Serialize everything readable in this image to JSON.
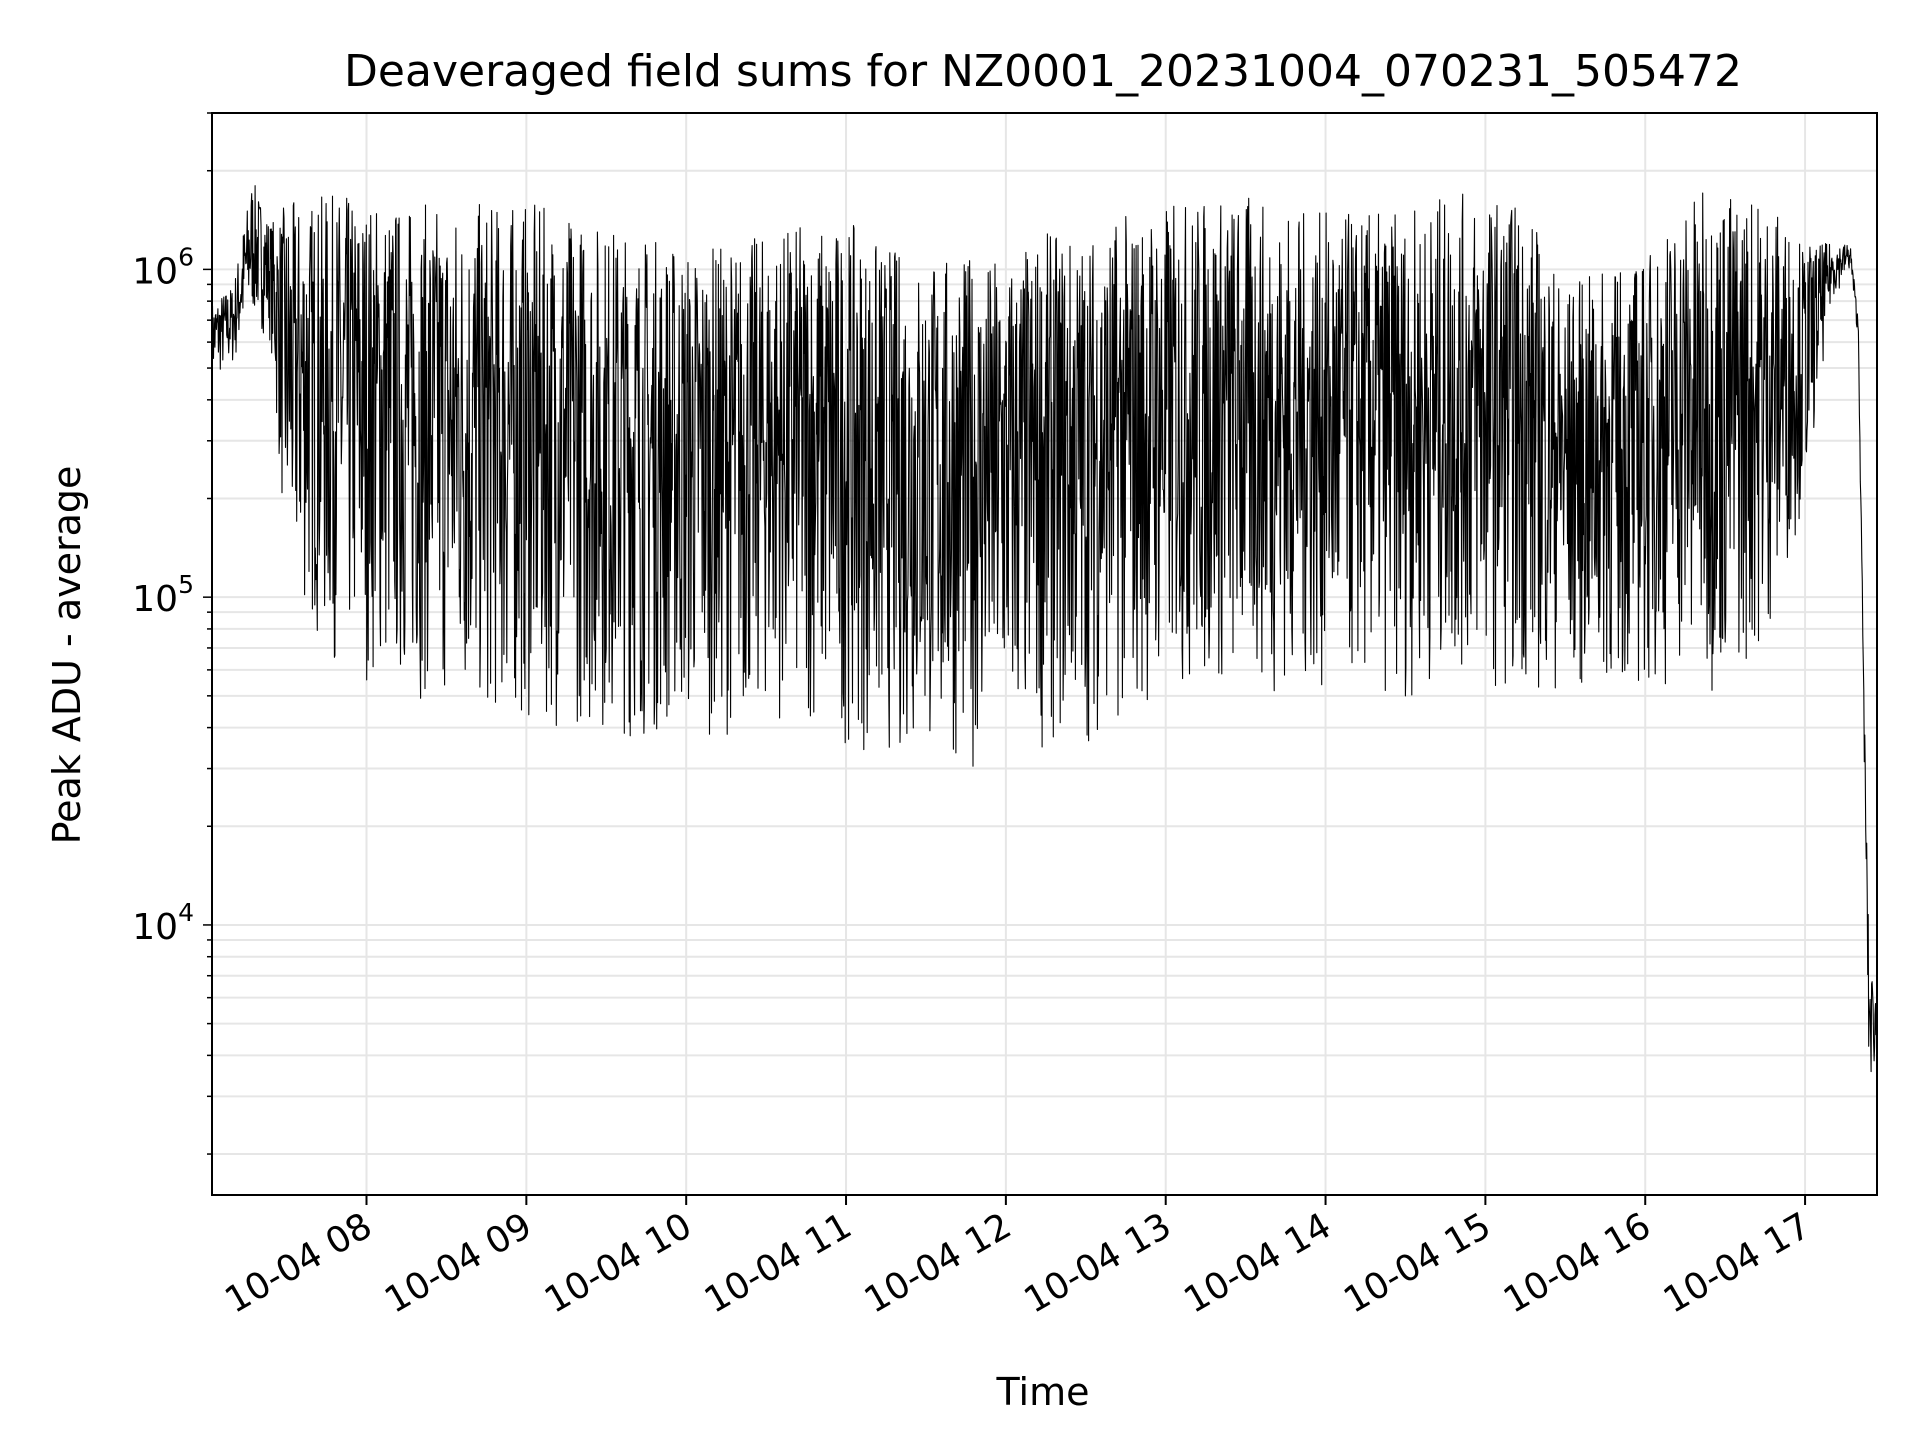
{
  "chart_data": {
    "type": "line",
    "title": "Deaveraged field sums for NZ0001_20231004_070231_505472",
    "xlabel": "Time",
    "ylabel": "Peak ADU - average",
    "y_scale": "log",
    "xlim": [
      "2023-10-04 07:02",
      "2023-10-04 17:27"
    ],
    "ylim": [
      1500,
      3000000
    ],
    "grid": true,
    "line_color": "#000000",
    "grid_color": "#e6e6e6",
    "x_ticks": [
      {
        "value": "2023-10-04 08:00",
        "label": "10-04 08"
      },
      {
        "value": "2023-10-04 09:00",
        "label": "10-04 09"
      },
      {
        "value": "2023-10-04 10:00",
        "label": "10-04 10"
      },
      {
        "value": "2023-10-04 11:00",
        "label": "10-04 11"
      },
      {
        "value": "2023-10-04 12:00",
        "label": "10-04 12"
      },
      {
        "value": "2023-10-04 13:00",
        "label": "10-04 13"
      },
      {
        "value": "2023-10-04 14:00",
        "label": "10-04 14"
      },
      {
        "value": "2023-10-04 15:00",
        "label": "10-04 15"
      },
      {
        "value": "2023-10-04 16:00",
        "label": "10-04 16"
      },
      {
        "value": "2023-10-04 17:00",
        "label": "10-04 17"
      }
    ],
    "y_ticks": [
      {
        "value": 10000,
        "base": "10",
        "exp": "4"
      },
      {
        "value": 100000,
        "base": "10",
        "exp": "5"
      },
      {
        "value": 1000000,
        "base": "10",
        "exp": "6"
      }
    ],
    "series": [
      {
        "x": [
          "2023-10-04 07:02",
          "2023-10-04 07:10",
          "2023-10-04 07:17",
          "2023-10-04 07:24",
          "2023-10-04 07:30",
          "2023-10-04 07:45",
          "2023-10-04 08:00",
          "2023-10-04 08:15",
          "2023-10-04 08:30",
          "2023-10-04 08:45",
          "2023-10-04 09:00",
          "2023-10-04 09:15",
          "2023-10-04 09:30",
          "2023-10-04 09:45",
          "2023-10-04 10:00",
          "2023-10-04 10:15",
          "2023-10-04 10:30",
          "2023-10-04 10:45",
          "2023-10-04 11:00",
          "2023-10-04 11:15",
          "2023-10-04 11:30",
          "2023-10-04 11:45",
          "2023-10-04 12:00",
          "2023-10-04 12:15",
          "2023-10-04 12:30",
          "2023-10-04 12:45",
          "2023-10-04 13:00",
          "2023-10-04 13:15",
          "2023-10-04 13:30",
          "2023-10-04 13:45",
          "2023-10-04 14:00",
          "2023-10-04 14:15",
          "2023-10-04 14:30",
          "2023-10-04 14:45",
          "2023-10-04 15:00",
          "2023-10-04 15:15",
          "2023-10-04 15:30",
          "2023-10-04 15:45",
          "2023-10-04 16:00",
          "2023-10-04 16:15",
          "2023-10-04 16:30",
          "2023-10-04 16:45",
          "2023-10-04 17:00",
          "2023-10-04 17:10",
          "2023-10-04 17:17",
          "2023-10-04 17:20",
          "2023-10-04 17:22",
          "2023-10-04 17:24",
          "2023-10-04 17:27"
        ],
        "low": [
          450000,
          500000,
          700000,
          600000,
          110000,
          65000,
          55000,
          50000,
          45000,
          40000,
          40000,
          40000,
          38000,
          36000,
          38000,
          38000,
          42000,
          40000,
          35000,
          32000,
          31000,
          30000,
          32000,
          34000,
          36000,
          40000,
          50000,
          50000,
          50000,
          50000,
          50000,
          50000,
          48000,
          55000,
          55000,
          50000,
          50000,
          50000,
          50000,
          55000,
          50000,
          70000,
          200000,
          800000,
          1000000,
          600000,
          40000,
          3000,
          4000
        ],
        "high": [
          800000,
          900000,
          1900000,
          1400000,
          1600000,
          1700000,
          1700000,
          1600000,
          1600000,
          1600000,
          1600000,
          1500000,
          1400000,
          1300000,
          1200000,
          1200000,
          1300000,
          1400000,
          1400000,
          1200000,
          1100000,
          1100000,
          1100000,
          1300000,
          1300000,
          1500000,
          1600000,
          1700000,
          1700000,
          1500000,
          1500000,
          1500000,
          1500000,
          1700000,
          1700000,
          1600000,
          900000,
          1000000,
          1100000,
          1700000,
          1800000,
          1700000,
          1200000,
          1200000,
          1200000,
          700000,
          60000,
          8000,
          6000
        ]
      }
    ]
  }
}
